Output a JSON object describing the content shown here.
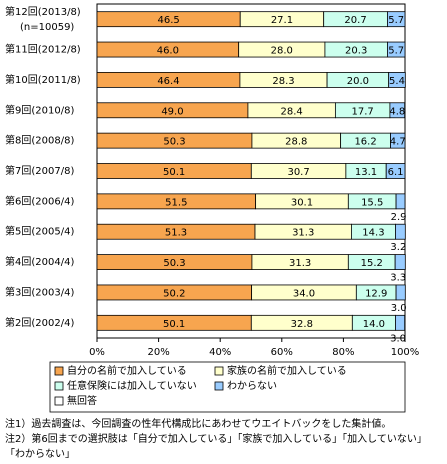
{
  "chart_data": {
    "type": "stacked-bar-horizontal",
    "categories": [
      "第12回(2013/8)",
      "第11回(2012/8)",
      "第10回(2011/8)",
      "第9回(2010/8)",
      "第8回(2008/8)",
      "第7回(2007/8)",
      "第6回(2006/4)",
      "第5回(2005/4)",
      "第4回(2004/4)",
      "第3回(2003/4)",
      "第2回(2002/4)"
    ],
    "category_note": "(n=10059)",
    "series": [
      {
        "name": "自分の名前で加入している",
        "color": "#f7a54f",
        "values": [
          46.5,
          46.0,
          46.4,
          49.0,
          50.3,
          50.1,
          51.5,
          51.3,
          50.3,
          50.2,
          50.1
        ],
        "value_labels": [
          "46.5",
          "46.0",
          "46.4",
          "49.0",
          "50.3",
          "50.1",
          "51.5",
          "51.3",
          "50.3",
          "50.2",
          "50.1"
        ]
      },
      {
        "name": "家族の名前で加入している",
        "color": "#ffffcc",
        "values": [
          27.1,
          28.0,
          28.3,
          28.4,
          28.8,
          30.7,
          30.1,
          31.3,
          31.3,
          34.0,
          32.8
        ],
        "value_labels": [
          "27.1",
          "28.0",
          "28.3",
          "28.4",
          "28.8",
          "30.7",
          "30.1",
          "31.3",
          "31.3",
          "34.0",
          "32.8"
        ]
      },
      {
        "name": "任意保険には加入していない",
        "color": "#ccffee",
        "values": [
          20.7,
          20.3,
          20.0,
          17.7,
          16.2,
          13.1,
          15.5,
          14.3,
          15.2,
          12.9,
          14.0
        ],
        "value_labels": [
          "20.7",
          "20.3",
          "20.0",
          "17.7",
          "16.2",
          "13.1",
          "15.5",
          "14.3",
          "15.2",
          "12.9",
          "14.0"
        ]
      },
      {
        "name": "わからない",
        "color": "#99ccff",
        "values": [
          5.7,
          5.7,
          5.4,
          4.8,
          4.7,
          6.1,
          2.9,
          3.2,
          3.3,
          3.0,
          3.0
        ],
        "value_labels": [
          "5.7",
          "5.7",
          "5.4",
          "4.8",
          "4.7",
          "6.1",
          "2.9",
          "3.2",
          "3.3",
          "3.0",
          "3.0"
        ]
      },
      {
        "name": "無回答",
        "color": "#ffffff",
        "values": [
          null,
          null,
          null,
          null,
          null,
          null,
          null,
          null,
          null,
          null,
          null
        ]
      }
    ],
    "xlim": [
      0,
      100
    ],
    "xticks": [
      {
        "value": 0,
        "label": "0%"
      },
      {
        "value": 20,
        "label": "20%"
      },
      {
        "value": 40,
        "label": "40%"
      },
      {
        "value": 60,
        "label": "60%"
      },
      {
        "value": 80,
        "label": "80%"
      },
      {
        "value": 100,
        "label": "100%"
      }
    ],
    "notes": [
      "注1）過去調査は、今回調査の性年代構成比にあわせてウエイトバックをした集計値。",
      "注2）第6回までの選択肢は「自分で加入している」「家族で加入している」「加入していない」",
      "「わからない」"
    ]
  }
}
